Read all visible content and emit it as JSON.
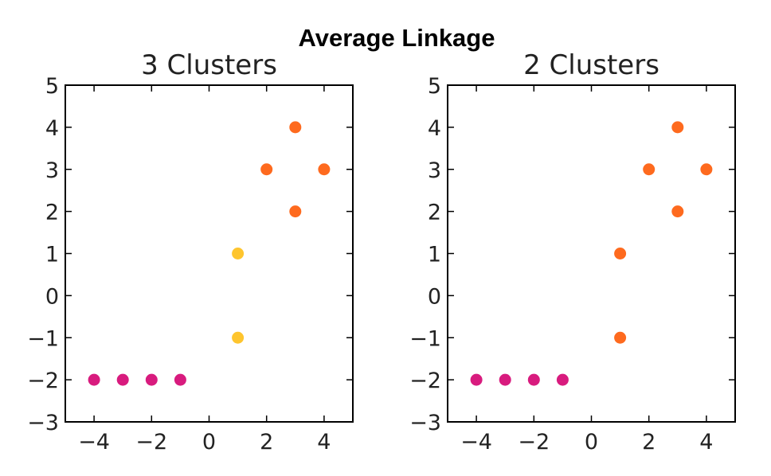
{
  "figure": {
    "suptitle": "Average Linkage"
  },
  "colors": {
    "magenta": "#d81b7e",
    "orange": "#fe6a1e",
    "yellow": "#fec52e"
  },
  "chart_data": [
    {
      "type": "scatter",
      "title": "3 Clusters",
      "xlabel": "",
      "ylabel": "",
      "xlim": [
        -5,
        5
      ],
      "ylim": [
        -3,
        5
      ],
      "xticks": [
        -4,
        -2,
        0,
        2,
        4
      ],
      "xtick_labels": [
        "−4",
        "−2",
        "0",
        "2",
        "4"
      ],
      "yticks": [
        -3,
        -2,
        -1,
        0,
        1,
        2,
        3,
        4,
        5
      ],
      "ytick_labels": [
        "−3",
        "−2",
        "−1",
        "0",
        "1",
        "2",
        "3",
        "4",
        "5"
      ],
      "grid": false,
      "points": [
        {
          "x": -4,
          "y": -2,
          "cluster": "magenta"
        },
        {
          "x": -3,
          "y": -2,
          "cluster": "magenta"
        },
        {
          "x": -2,
          "y": -2,
          "cluster": "magenta"
        },
        {
          "x": -1,
          "y": -2,
          "cluster": "magenta"
        },
        {
          "x": 1,
          "y": -1,
          "cluster": "yellow"
        },
        {
          "x": 1,
          "y": 1,
          "cluster": "yellow"
        },
        {
          "x": 2,
          "y": 3,
          "cluster": "orange"
        },
        {
          "x": 3,
          "y": 2,
          "cluster": "orange"
        },
        {
          "x": 3,
          "y": 4,
          "cluster": "orange"
        },
        {
          "x": 4,
          "y": 3,
          "cluster": "orange"
        }
      ]
    },
    {
      "type": "scatter",
      "title": "2 Clusters",
      "xlabel": "",
      "ylabel": "",
      "xlim": [
        -5,
        5
      ],
      "ylim": [
        -3,
        5
      ],
      "xticks": [
        -4,
        -2,
        0,
        2,
        4
      ],
      "xtick_labels": [
        "−4",
        "−2",
        "0",
        "2",
        "4"
      ],
      "yticks": [
        -3,
        -2,
        -1,
        0,
        1,
        2,
        3,
        4,
        5
      ],
      "ytick_labels": [
        "−3",
        "−2",
        "−1",
        "0",
        "1",
        "2",
        "3",
        "4",
        "5"
      ],
      "grid": false,
      "points": [
        {
          "x": -4,
          "y": -2,
          "cluster": "magenta"
        },
        {
          "x": -3,
          "y": -2,
          "cluster": "magenta"
        },
        {
          "x": -2,
          "y": -2,
          "cluster": "magenta"
        },
        {
          "x": -1,
          "y": -2,
          "cluster": "magenta"
        },
        {
          "x": 1,
          "y": -1,
          "cluster": "orange"
        },
        {
          "x": 1,
          "y": 1,
          "cluster": "orange"
        },
        {
          "x": 2,
          "y": 3,
          "cluster": "orange"
        },
        {
          "x": 3,
          "y": 2,
          "cluster": "orange"
        },
        {
          "x": 3,
          "y": 4,
          "cluster": "orange"
        },
        {
          "x": 4,
          "y": 3,
          "cluster": "orange"
        }
      ]
    }
  ]
}
